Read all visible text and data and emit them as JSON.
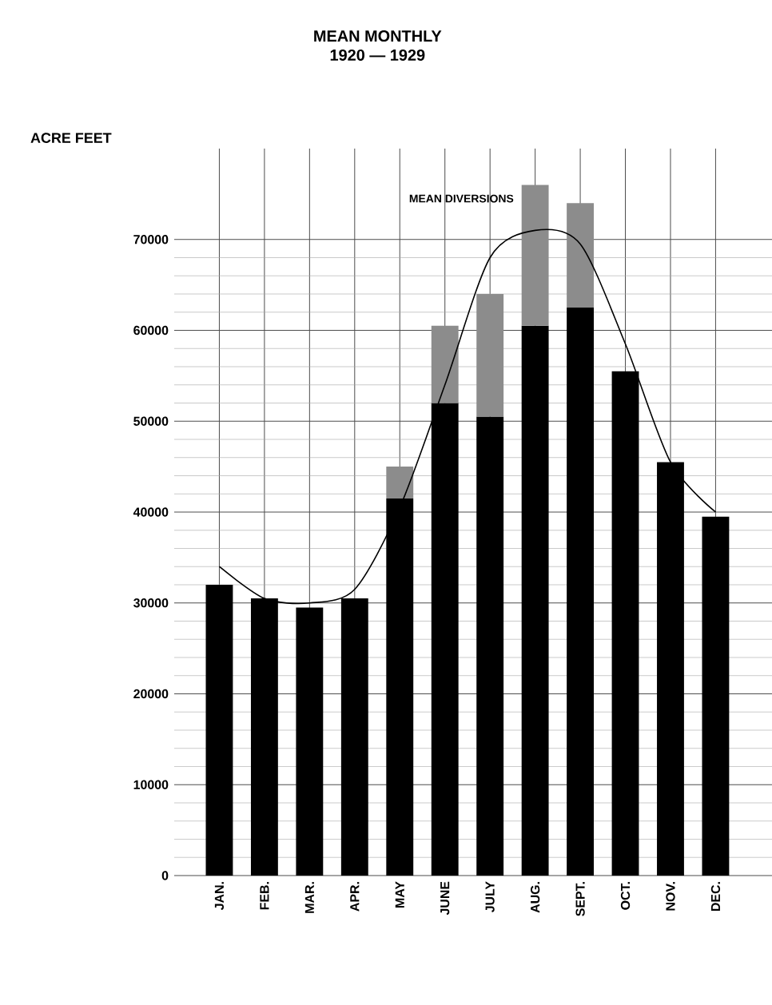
{
  "chart_data": {
    "type": "bar",
    "title": "MEAN MONTHLY",
    "subtitle": "1920 — 1929",
    "ylabel": "ACRE FEET",
    "categories": [
      "JAN.",
      "FEB.",
      "MAR.",
      "APR.",
      "MAY",
      "JUNE",
      "JULY",
      "AUG.",
      "SEPT.",
      "OCT.",
      "NOV.",
      "DEC."
    ],
    "stacked": true,
    "series": [
      {
        "color": "#000000",
        "values": [
          32000,
          30500,
          29500,
          30500,
          41500,
          52000,
          50500,
          60500,
          62500,
          55500,
          45500,
          39500
        ]
      },
      {
        "name": "MEAN DIVERSIONS",
        "color": "#8c8c8c",
        "values": [
          null,
          null,
          null,
          null,
          3500,
          8500,
          13500,
          15500,
          11500,
          null,
          null,
          null
        ]
      },
      {
        "type": "line",
        "color": "#000000",
        "values": [
          34000,
          30500,
          30000,
          31500,
          40500,
          54000,
          68000,
          71000,
          69500,
          58500,
          45500,
          40000
        ]
      }
    ],
    "ylim": [
      0,
      80000
    ],
    "yticks": [
      0,
      10000,
      20000,
      30000,
      40000,
      50000,
      60000,
      70000
    ],
    "grid": true,
    "legend": false
  }
}
